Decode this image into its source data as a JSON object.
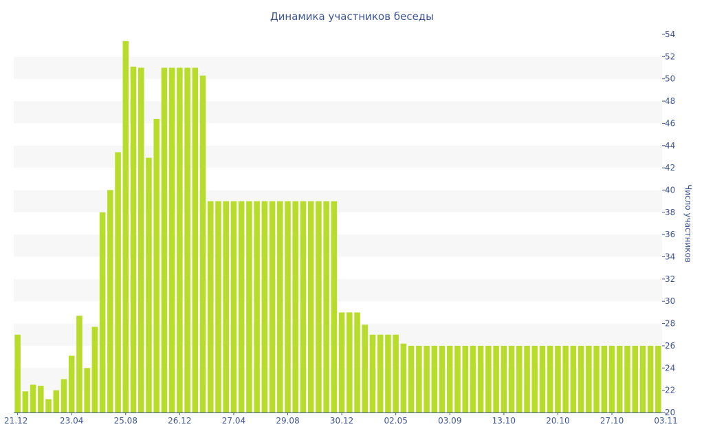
{
  "chart_data": {
    "type": "bar",
    "title": "Динамика участников беседы",
    "ylabel": "Число участников",
    "xlabel": "",
    "ylim": [
      20,
      54
    ],
    "ytick_step": 2,
    "y_axis_side": "right",
    "grid": "alternating horizontal bands",
    "colors": {
      "bar": "#b8dc2a",
      "text": "#3d5494",
      "band": "#f7f7f7"
    },
    "x_tick_labels": [
      {
        "label": "21.12",
        "index": 0
      },
      {
        "label": "23.04",
        "index": 7
      },
      {
        "label": "25.08",
        "index": 14
      },
      {
        "label": "26.12",
        "index": 21
      },
      {
        "label": "27.04",
        "index": 28
      },
      {
        "label": "29.08",
        "index": 35
      },
      {
        "label": "30.12",
        "index": 42
      },
      {
        "label": "02.05",
        "index": 49
      },
      {
        "label": "03.09",
        "index": 56
      },
      {
        "label": "13.10",
        "index": 63
      },
      {
        "label": "20.10",
        "index": 70
      },
      {
        "label": "27.10",
        "index": 77
      },
      {
        "label": "03.11",
        "index": 84
      }
    ],
    "values": [
      27,
      21.9,
      22.5,
      22.4,
      21.2,
      22,
      23,
      25.1,
      28.7,
      24,
      27.7,
      38,
      40,
      43.4,
      53.4,
      51.1,
      51,
      42.9,
      46.4,
      51,
      51,
      51,
      51,
      51,
      50.3,
      39,
      39,
      39,
      39,
      39,
      39,
      39,
      39,
      39,
      39,
      39,
      39,
      39,
      39,
      39,
      39,
      39,
      29,
      29,
      29,
      27.9,
      27,
      27,
      27,
      27,
      26.2,
      26,
      26,
      26,
      26,
      26,
      26,
      26,
      26,
      26,
      26,
      26,
      26,
      26,
      26,
      26,
      26,
      26,
      26,
      26,
      26,
      26,
      26,
      26,
      26,
      26,
      26,
      26,
      26,
      26,
      26,
      26,
      26,
      26
    ]
  }
}
